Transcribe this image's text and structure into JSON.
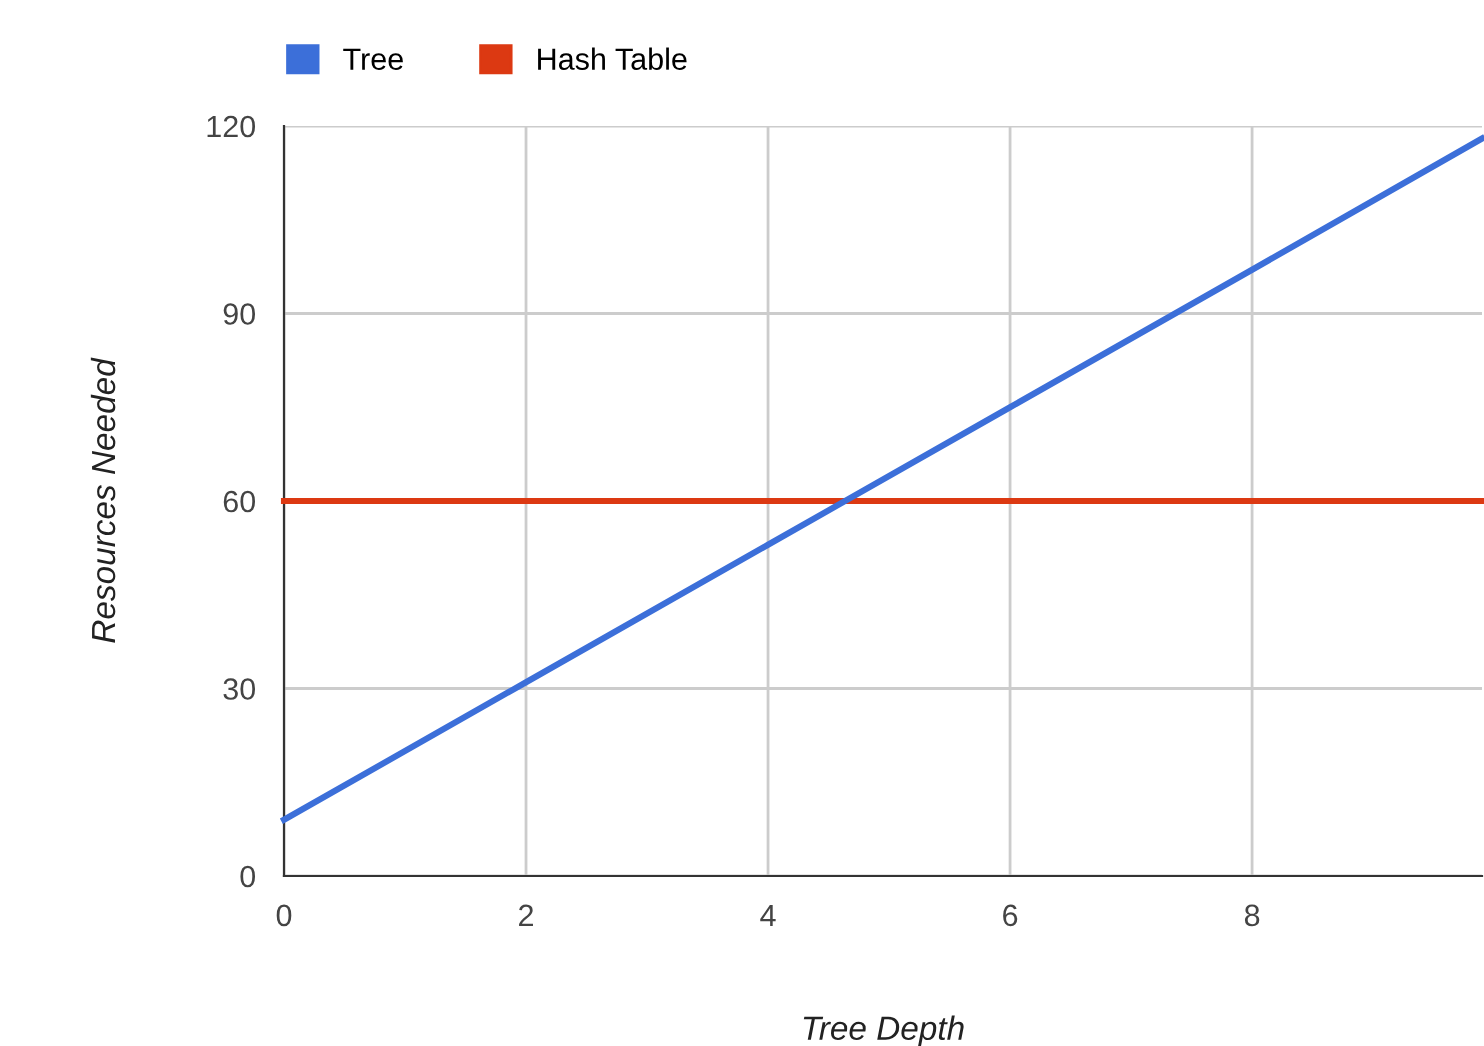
{
  "chart_data": {
    "type": "line",
    "xlabel": "Tree Depth",
    "ylabel": "Resources Needed",
    "series": [
      {
        "name": "Tree",
        "color": "#3c6fd9",
        "x": [
          0,
          2,
          4,
          6,
          8,
          9.9
        ],
        "values": [
          9,
          31,
          53,
          75,
          97,
          118
        ]
      },
      {
        "name": "Hash Table",
        "color": "#dc3912",
        "x": [
          0,
          2,
          4,
          6,
          8,
          9.9
        ],
        "values": [
          60,
          60,
          60,
          60,
          60,
          60
        ]
      }
    ],
    "xlim": [
      0,
      9.9
    ],
    "xticks": [
      0,
      2,
      4,
      6,
      8
    ],
    "ylim": [
      0,
      120
    ],
    "yticks": [
      0,
      30,
      60,
      90,
      120
    ],
    "grid": true,
    "legend": "top left",
    "marker": "none",
    "line_style": "solid"
  }
}
